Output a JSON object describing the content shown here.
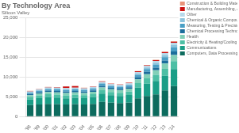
{
  "chart_data": {
    "type": "bar",
    "title": "By Technology Area",
    "subtitle": "Silicon Valley",
    "stacked": true,
    "grid": true,
    "legend": "right",
    "categories": [
      "'98",
      "'99",
      "'00",
      "'01",
      "'02",
      "'03",
      "'04",
      "'05",
      "'06",
      "'07",
      "'08",
      "'09",
      "'10",
      "'11",
      "'12",
      "'13",
      "'14"
    ],
    "series": [
      {
        "name": "Computers, Data Processing & Information Storage",
        "color": "#0d6b5e",
        "values": [
          2900,
          3050,
          3200,
          3150,
          3050,
          3150,
          3050,
          3200,
          3700,
          3500,
          3400,
          3500,
          4600,
          5200,
          5600,
          6600,
          7700
        ]
      },
      {
        "name": "Communications",
        "color": "#1a9e87",
        "values": [
          1400,
          1600,
          1700,
          1650,
          1550,
          1600,
          1600,
          1700,
          2100,
          1900,
          1800,
          1950,
          2700,
          3100,
          3400,
          3700,
          4300
        ]
      },
      {
        "name": "Electricity & Heating/Cooling",
        "color": "#4dbfa5",
        "values": [
          650,
          700,
          750,
          750,
          760,
          760,
          750,
          760,
          860,
          820,
          820,
          870,
          1150,
          1350,
          1550,
          1750,
          2000
        ]
      },
      {
        "name": "Health",
        "color": "#82d0b8",
        "values": [
          480,
          520,
          570,
          570,
          590,
          590,
          580,
          620,
          710,
          670,
          670,
          720,
          950,
          1050,
          1150,
          1350,
          1550
        ]
      },
      {
        "name": "Chemical Processing Technologies",
        "color": "#1c6e9c",
        "values": [
          280,
          300,
          330,
          340,
          340,
          340,
          330,
          340,
          390,
          360,
          360,
          380,
          520,
          580,
          650,
          740,
          860
        ]
      },
      {
        "name": "Measuring, Testing & Precision Instruments",
        "color": "#4a9fc5",
        "values": [
          290,
          310,
          360,
          380,
          410,
          400,
          380,
          390,
          470,
          430,
          430,
          450,
          620,
          690,
          770,
          860,
          1000
        ]
      },
      {
        "name": "Chemical & Organic Compounds/Materials",
        "color": "#8cc3dc",
        "values": [
          190,
          200,
          220,
          230,
          240,
          240,
          230,
          240,
          270,
          260,
          260,
          270,
          360,
          400,
          460,
          520,
          600
        ]
      },
      {
        "name": "Other",
        "color": "#b8d9ea",
        "values": [
          190,
          200,
          220,
          230,
          240,
          240,
          230,
          240,
          270,
          260,
          260,
          270,
          360,
          400,
          460,
          520,
          600
        ]
      },
      {
        "name": "Manufacturing, Assembling, & Treating",
        "color": "#cc1111",
        "values": [
          80,
          90,
          100,
          100,
          400,
          390,
          95,
          100,
          130,
          110,
          110,
          120,
          160,
          180,
          210,
          240,
          280
        ]
      },
      {
        "name": "Construction & Building Materials",
        "color": "#e8937a",
        "values": [
          40,
          45,
          50,
          50,
          50,
          50,
          45,
          50,
          60,
          55,
          55,
          60,
          80,
          90,
          105,
          120,
          140
        ]
      }
    ],
    "ylim": [
      0,
      25000
    ],
    "yticks": [
      0,
      {
        "value": 5000,
        "label": "5,000"
      },
      {
        "value": 10000,
        "label": "10,000"
      },
      {
        "value": 15000,
        "label": "15,000"
      },
      {
        "value": 20000,
        "label": "20,000"
      },
      {
        "value": 25000,
        "label": "25,000"
      }
    ]
  }
}
